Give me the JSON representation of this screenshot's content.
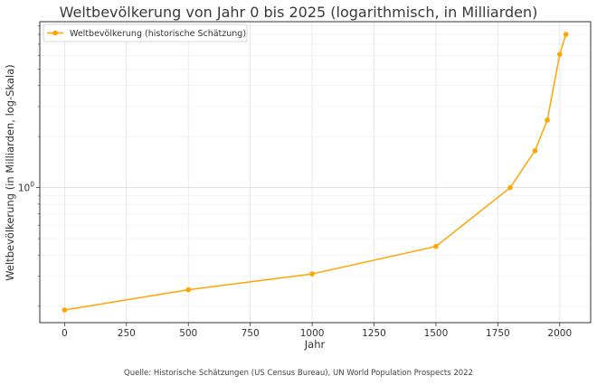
{
  "chart_data": {
    "type": "line",
    "title": "Weltbevölkerung von Jahr 0 bis 2025 (logarithmisch, in Milliarden)",
    "xlabel": "Jahr",
    "ylabel": "Weltbevölkerung (in Milliarden, log-Skala)",
    "yscale": "log",
    "grid": true,
    "legend_position": "top-left",
    "xlim": [
      -100,
      2125
    ],
    "ylim": [
      0.16,
      9.5
    ],
    "x_ticks": [
      0,
      250,
      500,
      750,
      1000,
      1250,
      1500,
      1750,
      2000
    ],
    "x_tick_labels": [
      "0",
      "250",
      "500",
      "750",
      "1000",
      "1250",
      "1500",
      "1750",
      "2000"
    ],
    "y_major_tick": {
      "value": 1,
      "base": "10",
      "exponent": "0"
    },
    "series": [
      {
        "name": "Weltbevölkerung (historische Schätzung)",
        "color": "#FFA500",
        "x": [
          0,
          500,
          1000,
          1500,
          1800,
          1900,
          1950,
          2000,
          2025
        ],
        "values": [
          0.19,
          0.25,
          0.31,
          0.45,
          1.0,
          1.65,
          2.5,
          6.1,
          8.0
        ]
      }
    ],
    "source": "Quelle: Historische Schätzungen (US Census Bureau), UN World Population Prospects 2022"
  }
}
